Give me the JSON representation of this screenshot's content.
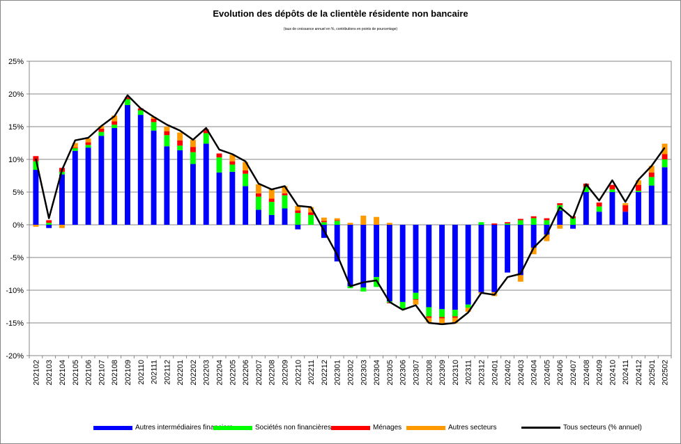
{
  "chart_data": {
    "type": "bar",
    "title": "Evolution des dépôts de la clientèle  résidente non bancaire",
    "subtitle": "(taux de croissance  annuel en %, contributions en points de pourcentage)",
    "ylim": [
      -20,
      25
    ],
    "yticks": [
      -20,
      -15,
      -10,
      -5,
      0,
      5,
      10,
      15,
      20,
      25
    ],
    "ytick_labels": [
      "-20%",
      "-15%",
      "-10%",
      "-5%",
      "0%",
      "5%",
      "10%",
      "15%",
      "20%",
      "25%"
    ],
    "grid": true,
    "legend_position": "bottom",
    "categories": [
      "202102",
      "202103",
      "202104",
      "202105",
      "202106",
      "202107",
      "202108",
      "202109",
      "202110",
      "202111",
      "202112",
      "202201",
      "202202",
      "202203",
      "202204",
      "202205",
      "202206",
      "202207",
      "202208",
      "202209",
      "202210",
      "202211",
      "202212",
      "202301",
      "202302",
      "202303",
      "202304",
      "202305",
      "202306",
      "202307",
      "202308",
      "202309",
      "202310",
      "202311",
      "202312",
      "202401",
      "202402",
      "202403",
      "202404",
      "202405",
      "202406",
      "202407",
      "202408",
      "202409",
      "202410",
      "202411",
      "202412",
      "202501",
      "202502"
    ],
    "series": [
      {
        "name": "Autres intermédiaires financiers",
        "color": "#0000ff",
        "kind": "bar",
        "values": [
          8.4,
          -0.5,
          7.7,
          11.3,
          11.8,
          13.6,
          14.8,
          18.3,
          16.8,
          14.4,
          12.0,
          11.4,
          9.3,
          12.4,
          8.0,
          8.1,
          5.9,
          2.3,
          1.5,
          2.5,
          -0.7,
          0.0,
          -2.0,
          -5.6,
          -9.4,
          -9.6,
          -8.0,
          -11.7,
          -11.8,
          -10.4,
          -12.6,
          -12.9,
          -13.0,
          -12.2,
          -10.3,
          -10.3,
          -7.3,
          -7.7,
          -3.5,
          -1.5,
          2.2,
          -0.6,
          5.0,
          2.0,
          5.0,
          2.0,
          5.0,
          6.0,
          8.8
        ]
      },
      {
        "name": "Sociétés non financières",
        "color": "#00ff00",
        "kind": "bar",
        "values": [
          1.3,
          0.3,
          0.4,
          0.4,
          0.4,
          0.6,
          0.5,
          0.9,
          0.7,
          1.3,
          1.7,
          0.7,
          1.8,
          1.6,
          2.3,
          1.1,
          1.9,
          2.0,
          2.0,
          2.0,
          1.8,
          1.5,
          0.4,
          0.6,
          -0.3,
          -0.6,
          -1.5,
          -0.2,
          -1.0,
          -1.0,
          -1.4,
          -1.2,
          -1.0,
          -0.5,
          0.4,
          0.0,
          0.2,
          0.7,
          1.0,
          0.7,
          0.8,
          1.0,
          0.8,
          0.8,
          0.4,
          0.0,
          0.2,
          1.3,
          1.2
        ]
      },
      {
        "name": "Ménages",
        "color": "#ff0000",
        "kind": "bar",
        "values": [
          0.8,
          0.4,
          0.6,
          0.1,
          0.4,
          0.5,
          0.5,
          0.3,
          0.3,
          0.5,
          0.6,
          0.8,
          0.8,
          0.6,
          0.6,
          0.5,
          0.5,
          0.5,
          0.5,
          0.3,
          0.4,
          0.4,
          0.2,
          0.1,
          0.0,
          0.0,
          0.0,
          -0.1,
          -0.1,
          -0.1,
          -0.2,
          -0.2,
          -0.2,
          0.0,
          0.0,
          0.2,
          0.2,
          0.2,
          0.3,
          0.3,
          0.3,
          0.3,
          0.5,
          0.6,
          0.7,
          1.0,
          0.9,
          0.7,
          0.8
        ]
      },
      {
        "name": "Autres secteurs",
        "color": "#ff9900",
        "kind": "bar",
        "values": [
          -0.3,
          0.0,
          -0.5,
          0.7,
          0.6,
          0.4,
          0.9,
          0.0,
          0.0,
          0.3,
          0.7,
          1.2,
          1.1,
          0.0,
          0.0,
          1.0,
          1.3,
          1.4,
          1.4,
          1.1,
          0.7,
          0.8,
          0.5,
          0.3,
          0.3,
          1.4,
          1.2,
          0.3,
          0.0,
          -0.7,
          -0.7,
          -1.0,
          -0.9,
          -0.6,
          -0.2,
          -0.6,
          0.0,
          -1.0,
          -1.0,
          -1.0,
          -0.6,
          0.0,
          0.0,
          0.0,
          0.0,
          0.3,
          0.7,
          1.0,
          1.6
        ]
      },
      {
        "name": "Tous secteurs (% annuel)",
        "color": "#000000",
        "kind": "line",
        "values": [
          10.1,
          1.0,
          8.4,
          12.9,
          13.3,
          15.1,
          16.6,
          19.8,
          17.8,
          16.5,
          15.3,
          14.4,
          13.0,
          14.8,
          11.5,
          10.8,
          9.7,
          6.3,
          5.4,
          5.9,
          2.9,
          2.7,
          -0.9,
          -4.6,
          -9.4,
          -8.8,
          -8.5,
          -11.8,
          -13.0,
          -12.3,
          -15.0,
          -15.2,
          -15.0,
          -13.4,
          -10.4,
          -10.7,
          -8.0,
          -7.5,
          -3.5,
          -1.5,
          2.7,
          1.0,
          6.2,
          3.7,
          6.8,
          3.5,
          6.9,
          9.0,
          11.8
        ]
      }
    ]
  }
}
